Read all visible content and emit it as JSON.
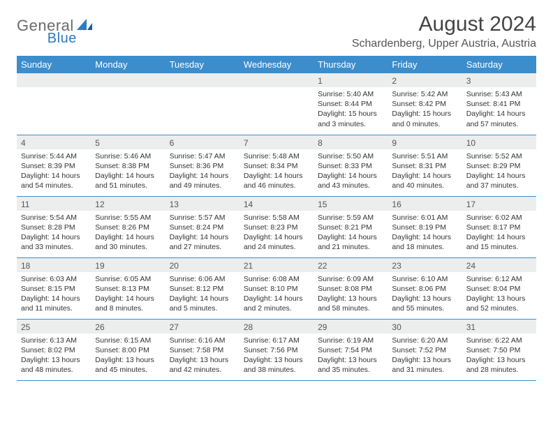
{
  "brand": {
    "word1": "General",
    "word2": "Blue"
  },
  "title": "August 2024",
  "location": "Schardenberg, Upper Austria, Austria",
  "colors": {
    "header_bg": "#3c8dcc",
    "band_bg": "#eceded",
    "rule": "#3c8dcc",
    "accent_blue": "#2f7ac0"
  },
  "day_names": [
    "Sunday",
    "Monday",
    "Tuesday",
    "Wednesday",
    "Thursday",
    "Friday",
    "Saturday"
  ],
  "weeks": [
    [
      null,
      null,
      null,
      null,
      {
        "n": "1",
        "sr": "Sunrise: 5:40 AM",
        "ss": "Sunset: 8:44 PM",
        "d1": "Daylight: 15 hours",
        "d2": "and 3 minutes."
      },
      {
        "n": "2",
        "sr": "Sunrise: 5:42 AM",
        "ss": "Sunset: 8:42 PM",
        "d1": "Daylight: 15 hours",
        "d2": "and 0 minutes."
      },
      {
        "n": "3",
        "sr": "Sunrise: 5:43 AM",
        "ss": "Sunset: 8:41 PM",
        "d1": "Daylight: 14 hours",
        "d2": "and 57 minutes."
      }
    ],
    [
      {
        "n": "4",
        "sr": "Sunrise: 5:44 AM",
        "ss": "Sunset: 8:39 PM",
        "d1": "Daylight: 14 hours",
        "d2": "and 54 minutes."
      },
      {
        "n": "5",
        "sr": "Sunrise: 5:46 AM",
        "ss": "Sunset: 8:38 PM",
        "d1": "Daylight: 14 hours",
        "d2": "and 51 minutes."
      },
      {
        "n": "6",
        "sr": "Sunrise: 5:47 AM",
        "ss": "Sunset: 8:36 PM",
        "d1": "Daylight: 14 hours",
        "d2": "and 49 minutes."
      },
      {
        "n": "7",
        "sr": "Sunrise: 5:48 AM",
        "ss": "Sunset: 8:34 PM",
        "d1": "Daylight: 14 hours",
        "d2": "and 46 minutes."
      },
      {
        "n": "8",
        "sr": "Sunrise: 5:50 AM",
        "ss": "Sunset: 8:33 PM",
        "d1": "Daylight: 14 hours",
        "d2": "and 43 minutes."
      },
      {
        "n": "9",
        "sr": "Sunrise: 5:51 AM",
        "ss": "Sunset: 8:31 PM",
        "d1": "Daylight: 14 hours",
        "d2": "and 40 minutes."
      },
      {
        "n": "10",
        "sr": "Sunrise: 5:52 AM",
        "ss": "Sunset: 8:29 PM",
        "d1": "Daylight: 14 hours",
        "d2": "and 37 minutes."
      }
    ],
    [
      {
        "n": "11",
        "sr": "Sunrise: 5:54 AM",
        "ss": "Sunset: 8:28 PM",
        "d1": "Daylight: 14 hours",
        "d2": "and 33 minutes."
      },
      {
        "n": "12",
        "sr": "Sunrise: 5:55 AM",
        "ss": "Sunset: 8:26 PM",
        "d1": "Daylight: 14 hours",
        "d2": "and 30 minutes."
      },
      {
        "n": "13",
        "sr": "Sunrise: 5:57 AM",
        "ss": "Sunset: 8:24 PM",
        "d1": "Daylight: 14 hours",
        "d2": "and 27 minutes."
      },
      {
        "n": "14",
        "sr": "Sunrise: 5:58 AM",
        "ss": "Sunset: 8:23 PM",
        "d1": "Daylight: 14 hours",
        "d2": "and 24 minutes."
      },
      {
        "n": "15",
        "sr": "Sunrise: 5:59 AM",
        "ss": "Sunset: 8:21 PM",
        "d1": "Daylight: 14 hours",
        "d2": "and 21 minutes."
      },
      {
        "n": "16",
        "sr": "Sunrise: 6:01 AM",
        "ss": "Sunset: 8:19 PM",
        "d1": "Daylight: 14 hours",
        "d2": "and 18 minutes."
      },
      {
        "n": "17",
        "sr": "Sunrise: 6:02 AM",
        "ss": "Sunset: 8:17 PM",
        "d1": "Daylight: 14 hours",
        "d2": "and 15 minutes."
      }
    ],
    [
      {
        "n": "18",
        "sr": "Sunrise: 6:03 AM",
        "ss": "Sunset: 8:15 PM",
        "d1": "Daylight: 14 hours",
        "d2": "and 11 minutes."
      },
      {
        "n": "19",
        "sr": "Sunrise: 6:05 AM",
        "ss": "Sunset: 8:13 PM",
        "d1": "Daylight: 14 hours",
        "d2": "and 8 minutes."
      },
      {
        "n": "20",
        "sr": "Sunrise: 6:06 AM",
        "ss": "Sunset: 8:12 PM",
        "d1": "Daylight: 14 hours",
        "d2": "and 5 minutes."
      },
      {
        "n": "21",
        "sr": "Sunrise: 6:08 AM",
        "ss": "Sunset: 8:10 PM",
        "d1": "Daylight: 14 hours",
        "d2": "and 2 minutes."
      },
      {
        "n": "22",
        "sr": "Sunrise: 6:09 AM",
        "ss": "Sunset: 8:08 PM",
        "d1": "Daylight: 13 hours",
        "d2": "and 58 minutes."
      },
      {
        "n": "23",
        "sr": "Sunrise: 6:10 AM",
        "ss": "Sunset: 8:06 PM",
        "d1": "Daylight: 13 hours",
        "d2": "and 55 minutes."
      },
      {
        "n": "24",
        "sr": "Sunrise: 6:12 AM",
        "ss": "Sunset: 8:04 PM",
        "d1": "Daylight: 13 hours",
        "d2": "and 52 minutes."
      }
    ],
    [
      {
        "n": "25",
        "sr": "Sunrise: 6:13 AM",
        "ss": "Sunset: 8:02 PM",
        "d1": "Daylight: 13 hours",
        "d2": "and 48 minutes."
      },
      {
        "n": "26",
        "sr": "Sunrise: 6:15 AM",
        "ss": "Sunset: 8:00 PM",
        "d1": "Daylight: 13 hours",
        "d2": "and 45 minutes."
      },
      {
        "n": "27",
        "sr": "Sunrise: 6:16 AM",
        "ss": "Sunset: 7:58 PM",
        "d1": "Daylight: 13 hours",
        "d2": "and 42 minutes."
      },
      {
        "n": "28",
        "sr": "Sunrise: 6:17 AM",
        "ss": "Sunset: 7:56 PM",
        "d1": "Daylight: 13 hours",
        "d2": "and 38 minutes."
      },
      {
        "n": "29",
        "sr": "Sunrise: 6:19 AM",
        "ss": "Sunset: 7:54 PM",
        "d1": "Daylight: 13 hours",
        "d2": "and 35 minutes."
      },
      {
        "n": "30",
        "sr": "Sunrise: 6:20 AM",
        "ss": "Sunset: 7:52 PM",
        "d1": "Daylight: 13 hours",
        "d2": "and 31 minutes."
      },
      {
        "n": "31",
        "sr": "Sunrise: 6:22 AM",
        "ss": "Sunset: 7:50 PM",
        "d1": "Daylight: 13 hours",
        "d2": "and 28 minutes."
      }
    ]
  ]
}
